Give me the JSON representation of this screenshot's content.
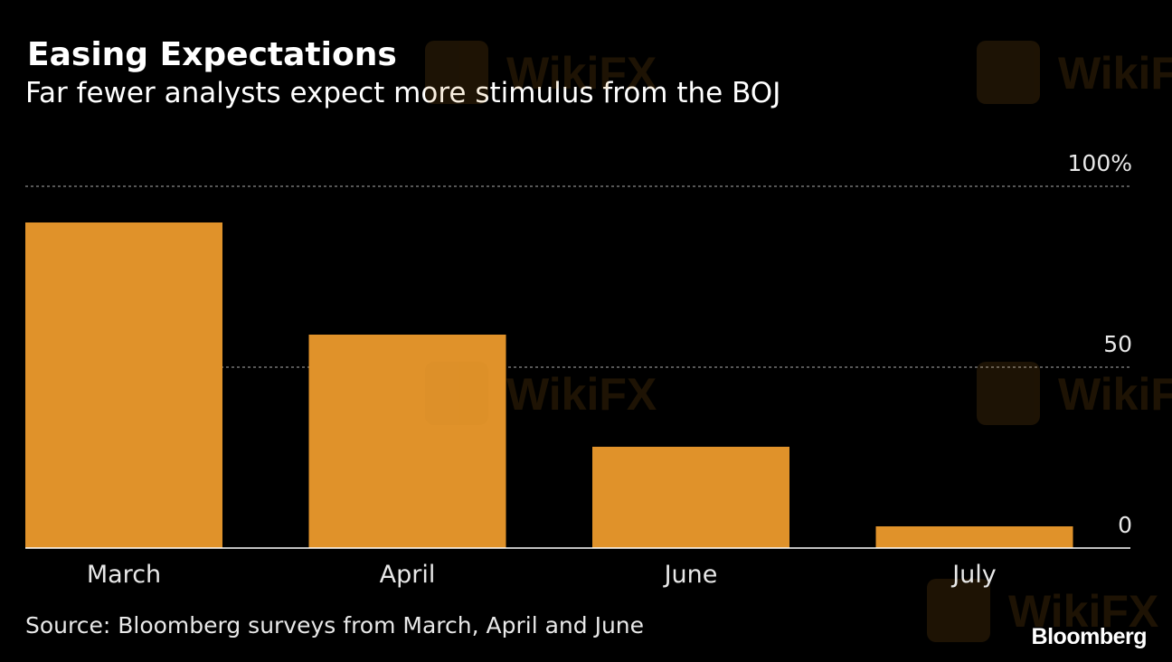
{
  "chart_data": {
    "type": "bar",
    "title": "Easing Expectations",
    "subtitle": "Far fewer analysts expect more stimulus from the BOJ",
    "categories": [
      "March",
      "April",
      "June",
      "July"
    ],
    "values": [
      90,
      59,
      28,
      6
    ],
    "ylim": [
      0,
      100
    ],
    "yticks": [
      {
        "value": 100,
        "label": "100%"
      },
      {
        "value": 50,
        "label": "50"
      },
      {
        "value": 0,
        "label": "0"
      }
    ],
    "grid": true,
    "bar_color": "#e0922a",
    "background": "#000000"
  },
  "footer": {
    "source": "Source: Bloomberg surveys from March, April and June",
    "brand": "Bloomberg"
  },
  "watermark": {
    "text": "WikiFX",
    "icon": "eagle-logo-icon"
  }
}
